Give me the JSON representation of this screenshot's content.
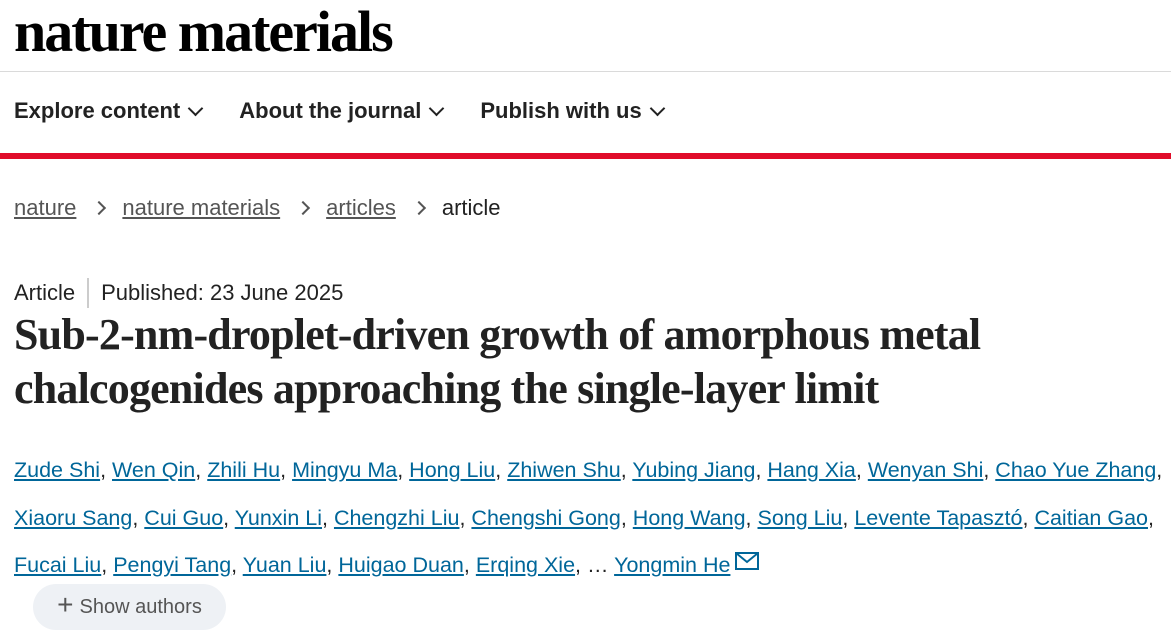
{
  "logo": "nature materials",
  "nav": [
    {
      "label": "Explore content"
    },
    {
      "label": "About the journal"
    },
    {
      "label": "Publish with us"
    }
  ],
  "breadcrumb": [
    {
      "label": "nature"
    },
    {
      "label": "nature materials"
    },
    {
      "label": "articles"
    },
    {
      "label": "article"
    }
  ],
  "article": {
    "type": "Article",
    "published": "Published: 23 June 2025",
    "title": "Sub-2-nm-droplet-driven growth of amorphous metal chalcogenides approaching the single-layer limit",
    "authors": [
      "Zude Shi",
      "Wen Qin",
      "Zhili Hu",
      "Mingyu Ma",
      "Hong Liu",
      "Zhiwen Shu",
      "Yubing Jiang",
      "Hang Xia",
      "Wenyan Shi",
      "Chao Yue Zhang",
      "Xiaoru Sang",
      "Cui Guo",
      "Yunxin Li",
      "Chengzhi Liu",
      "Chengshi Gong",
      "Hong Wang",
      "Song Liu",
      "Levente Tapasztó",
      "Caitian Gao",
      "Fucai Liu",
      "Pengyi Tang",
      "Yuan Liu",
      "Huigao Duan",
      "Erqing Xie"
    ],
    "ellipsis": "…",
    "last_author": "Yongmin He",
    "show_authors": "Show authors"
  },
  "colors": {
    "accent_red": "#e00d2a",
    "link": "#006699"
  }
}
